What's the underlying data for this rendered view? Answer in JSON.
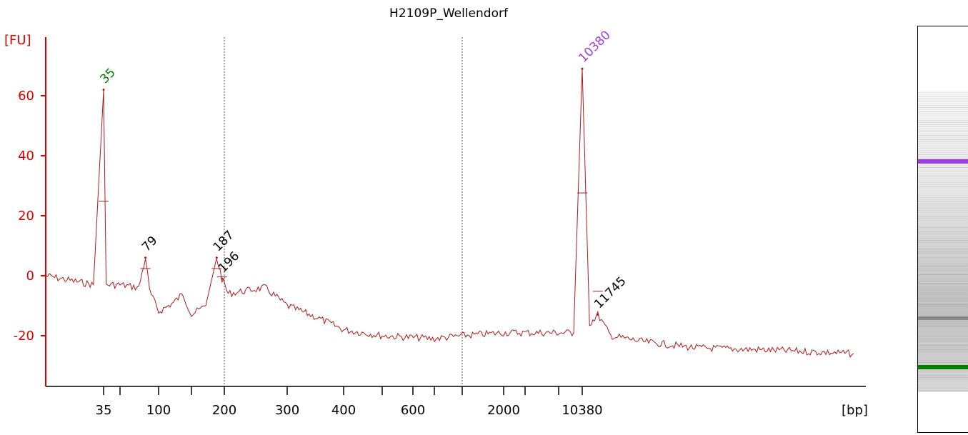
{
  "chart_data": {
    "type": "line",
    "title": "H2109P_Wellendorf",
    "ylabel": "[FU]",
    "xlabel": "[bp]",
    "ylim": [
      -35,
      80
    ],
    "y_ticks": [
      60,
      40,
      20,
      0,
      -20
    ],
    "x_tick_labels": [
      "35",
      "100",
      "200",
      "300",
      "400",
      "600",
      "2000",
      "10380"
    ],
    "x_scale": "ladder (non-linear)",
    "series": [
      {
        "points": [
          {
            "x": 25,
            "y": 0
          },
          {
            "x": 30,
            "y": -2
          },
          {
            "x": 33,
            "y": -3
          },
          {
            "x": 35,
            "y": 62
          },
          {
            "x": 37,
            "y": -3
          },
          {
            "x": 50,
            "y": -3
          },
          {
            "x": 70,
            "y": -4
          },
          {
            "x": 79,
            "y": 6
          },
          {
            "x": 85,
            "y": -5
          },
          {
            "x": 100,
            "y": -12
          },
          {
            "x": 120,
            "y": -9
          },
          {
            "x": 135,
            "y": -6
          },
          {
            "x": 150,
            "y": -13
          },
          {
            "x": 170,
            "y": -10
          },
          {
            "x": 187,
            "y": 6
          },
          {
            "x": 196,
            "y": -1
          },
          {
            "x": 205,
            "y": -6
          },
          {
            "x": 230,
            "y": -5
          },
          {
            "x": 260,
            "y": -4
          },
          {
            "x": 300,
            "y": -10
          },
          {
            "x": 350,
            "y": -14
          },
          {
            "x": 400,
            "y": -18
          },
          {
            "x": 500,
            "y": -20
          },
          {
            "x": 700,
            "y": -21
          },
          {
            "x": 1000,
            "y": -20
          },
          {
            "x": 2000,
            "y": -19
          },
          {
            "x": 5000,
            "y": -19
          },
          {
            "x": 9000,
            "y": -19
          },
          {
            "x": 10380,
            "y": 69
          },
          {
            "x": 11000,
            "y": -16
          },
          {
            "x": 11745,
            "y": -13
          },
          {
            "x": 13000,
            "y": -20
          },
          {
            "x": 16000,
            "y": -22
          },
          {
            "x": 20000,
            "y": -24
          },
          {
            "x": 30000,
            "y": -25
          },
          {
            "x": 40000,
            "y": -26
          }
        ]
      }
    ],
    "peaks": [
      {
        "label": "35",
        "x": 35,
        "y": 62,
        "color": "#008000"
      },
      {
        "label": "79",
        "x": 79,
        "y": 6,
        "color": "#000000"
      },
      {
        "label": "187",
        "x": 187,
        "y": 6,
        "color": "#000000"
      },
      {
        "label": "196",
        "x": 196,
        "y": -1,
        "color": "#000000"
      },
      {
        "label": "10380",
        "x": 10380,
        "y": 69,
        "color": "#a040e0"
      },
      {
        "label": "11745",
        "x": 11745,
        "y": -13,
        "color": "#000000"
      }
    ],
    "gel_bands": [
      {
        "size": 10380,
        "color": "#9b3ce8",
        "name": "upper marker"
      },
      {
        "size": 35,
        "color": "#008000",
        "name": "lower marker"
      }
    ],
    "grid": false,
    "legend": "none"
  },
  "colors": {
    "axis": "#dc0000",
    "trace": "#b01818",
    "lower_marker": "#008000",
    "upper_marker": "#a040e0"
  }
}
